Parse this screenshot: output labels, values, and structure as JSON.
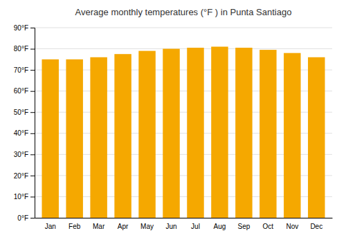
{
  "chart_data": {
    "type": "bar",
    "title": "Average monthly temperatures (°F ) in Punta Santiago",
    "categories": [
      "Jan",
      "Feb",
      "Mar",
      "Apr",
      "May",
      "Jun",
      "Jul",
      "Aug",
      "Sep",
      "Oct",
      "Nov",
      "Dec"
    ],
    "values": [
      75,
      75,
      76,
      77.5,
      79,
      80,
      80.5,
      81,
      80.5,
      79.5,
      78,
      76
    ],
    "color": "#F5A800",
    "ylim": [
      0,
      90
    ],
    "yticks": [
      {
        "value": 0,
        "label": "0°F"
      },
      {
        "value": 10,
        "label": "10°F"
      },
      {
        "value": 20,
        "label": "20°F"
      },
      {
        "value": 30,
        "label": "30°F"
      },
      {
        "value": 40,
        "label": "40°F"
      },
      {
        "value": 50,
        "label": "50°F"
      },
      {
        "value": 60,
        "label": "60°F"
      },
      {
        "value": 70,
        "label": "70°F"
      },
      {
        "value": 80,
        "label": "80°F"
      },
      {
        "value": 90,
        "label": "90°F"
      }
    ],
    "grid": true
  }
}
